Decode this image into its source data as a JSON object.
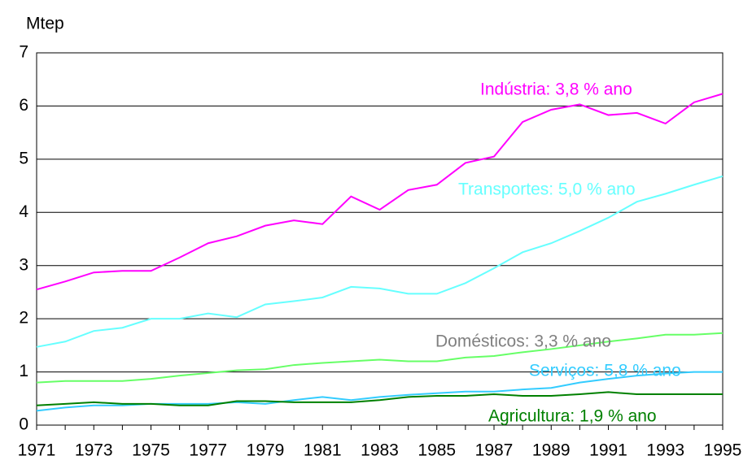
{
  "chart_data": {
    "type": "line",
    "y_label": "Mtep",
    "x": [
      1971,
      1972,
      1973,
      1974,
      1975,
      1976,
      1977,
      1978,
      1979,
      1980,
      1981,
      1982,
      1983,
      1984,
      1985,
      1986,
      1987,
      1988,
      1989,
      1990,
      1991,
      1992,
      1993,
      1994,
      1995
    ],
    "xlim": [
      1971,
      1995
    ],
    "xticks": [
      1971,
      1973,
      1975,
      1977,
      1979,
      1981,
      1983,
      1985,
      1987,
      1989,
      1991,
      1993,
      1995
    ],
    "ylim": [
      0,
      7
    ],
    "yticks": [
      0,
      1,
      2,
      3,
      4,
      5,
      6,
      7
    ],
    "grid": true,
    "series": [
      {
        "name": "Indústria: 3,8 %  ano",
        "color": "#ff00ff",
        "label_color": "#ff00ff",
        "values": [
          2.55,
          2.7,
          2.87,
          2.9,
          2.9,
          3.15,
          3.42,
          3.55,
          3.75,
          3.85,
          3.78,
          4.3,
          4.05,
          4.42,
          4.52,
          4.93,
          5.05,
          5.7,
          5.93,
          6.03,
          5.83,
          5.87,
          5.67,
          6.07,
          6.23
        ]
      },
      {
        "name": "Transportes: 5,0 % ano",
        "color": "#66ffff",
        "label_color": "#66ffff",
        "values": [
          1.47,
          1.57,
          1.77,
          1.83,
          2.0,
          2.0,
          2.1,
          2.03,
          2.27,
          2.33,
          2.4,
          2.6,
          2.57,
          2.47,
          2.47,
          2.67,
          2.95,
          3.25,
          3.42,
          3.65,
          3.9,
          4.2,
          4.35,
          4.52,
          4.68
        ]
      },
      {
        "name": "Domésticos: 3,3 % ano",
        "color": "#66ff66",
        "label_color": "#808080",
        "values": [
          0.8,
          0.83,
          0.83,
          0.83,
          0.87,
          0.93,
          0.98,
          1.03,
          1.05,
          1.13,
          1.17,
          1.2,
          1.23,
          1.2,
          1.2,
          1.27,
          1.3,
          1.37,
          1.43,
          1.5,
          1.57,
          1.63,
          1.7,
          1.7,
          1.73
        ]
      },
      {
        "name": "Serviços: 5,8 % ano",
        "color": "#33ccff",
        "label_color": "#33ccff",
        "values": [
          0.27,
          0.33,
          0.37,
          0.37,
          0.4,
          0.4,
          0.4,
          0.43,
          0.4,
          0.47,
          0.53,
          0.47,
          0.53,
          0.57,
          0.6,
          0.63,
          0.63,
          0.67,
          0.7,
          0.8,
          0.87,
          0.93,
          0.97,
          1.0,
          1.0
        ]
      },
      {
        "name": "Agricultura: 1,9 % ano",
        "color": "#008000",
        "label_color": "#008000",
        "values": [
          0.37,
          0.4,
          0.43,
          0.4,
          0.4,
          0.37,
          0.37,
          0.45,
          0.45,
          0.43,
          0.43,
          0.43,
          0.47,
          0.53,
          0.55,
          0.55,
          0.58,
          0.55,
          0.55,
          0.58,
          0.62,
          0.58,
          0.58,
          0.58,
          0.58
        ]
      }
    ]
  }
}
